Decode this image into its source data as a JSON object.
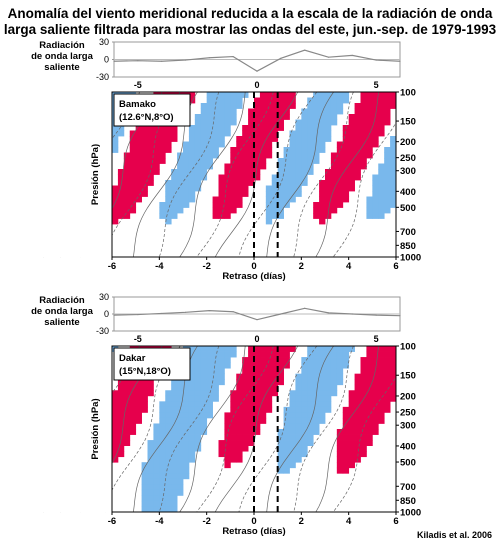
{
  "title_lines": [
    "Anomalía del viento meridional reducida a la escala de la radiación de onda",
    "larga saliente filtrada para mostrar las ondas del este, jun.-sep. de 1979-1993"
  ],
  "credit": "Kiladis et al. 2006",
  "colors": {
    "positive": "#e6004c",
    "negative": "#79b8ec",
    "contour": "#666666",
    "frame": "#000000"
  },
  "chart_data": [
    {
      "type": "line",
      "panel": "olr-bamako",
      "ylabel_lines": [
        "Radiación",
        "de onda larga",
        "saliente"
      ],
      "x": [
        -6,
        -5,
        -4,
        -3,
        -2,
        -1,
        0,
        1,
        2,
        3,
        4,
        5,
        6
      ],
      "y": [
        -3,
        -2,
        -3,
        -1,
        3,
        5,
        -20,
        2,
        16,
        4,
        7,
        -1,
        -3
      ],
      "ylim": [
        -30,
        30
      ],
      "yticks": [
        30,
        0,
        -30
      ],
      "xticks": [
        -5,
        0,
        5
      ]
    },
    {
      "type": "heatmap",
      "panel": "bamako",
      "station": "Bamako",
      "location": "(12.6°N,8°O)",
      "xlabel": "Retraso (días)",
      "ylabel": "Presión (hPa)",
      "xlim": [
        -6,
        6
      ],
      "xticks": [
        -6,
        -4,
        -2,
        0,
        2,
        4,
        6
      ],
      "yticks": [
        100,
        150,
        200,
        250,
        300,
        400,
        500,
        700,
        850,
        1000
      ],
      "ylim": [
        1000,
        100
      ],
      "dashed_lines_x": [
        0,
        1
      ]
    },
    {
      "type": "line",
      "panel": "olr-dakar",
      "ylabel_lines": [
        "Radiación",
        "de onda larga",
        "saliente"
      ],
      "x": [
        -6,
        -5,
        -4,
        -3,
        -2,
        -1,
        0,
        1,
        2,
        3,
        4,
        5,
        6
      ],
      "y": [
        -2,
        -1,
        1,
        3,
        6,
        4,
        -10,
        0,
        10,
        2,
        0,
        -2,
        -3
      ],
      "ylim": [
        -30,
        30
      ],
      "yticks": [
        30,
        0,
        -30
      ],
      "xticks": [
        -5,
        0,
        5
      ]
    },
    {
      "type": "heatmap",
      "panel": "dakar",
      "station": "Dakar",
      "location": "(15°N,18°O)",
      "xlabel": "Retraso (días)",
      "ylabel": "Presión (hPa)",
      "xlim": [
        -6,
        6
      ],
      "xticks": [
        -6,
        -4,
        -2,
        0,
        2,
        4,
        6
      ],
      "yticks": [
        100,
        150,
        200,
        250,
        300,
        400,
        500,
        700,
        850,
        1000
      ],
      "ylim": [
        1000,
        100
      ],
      "dashed_lines_x": [
        0,
        1
      ]
    }
  ]
}
